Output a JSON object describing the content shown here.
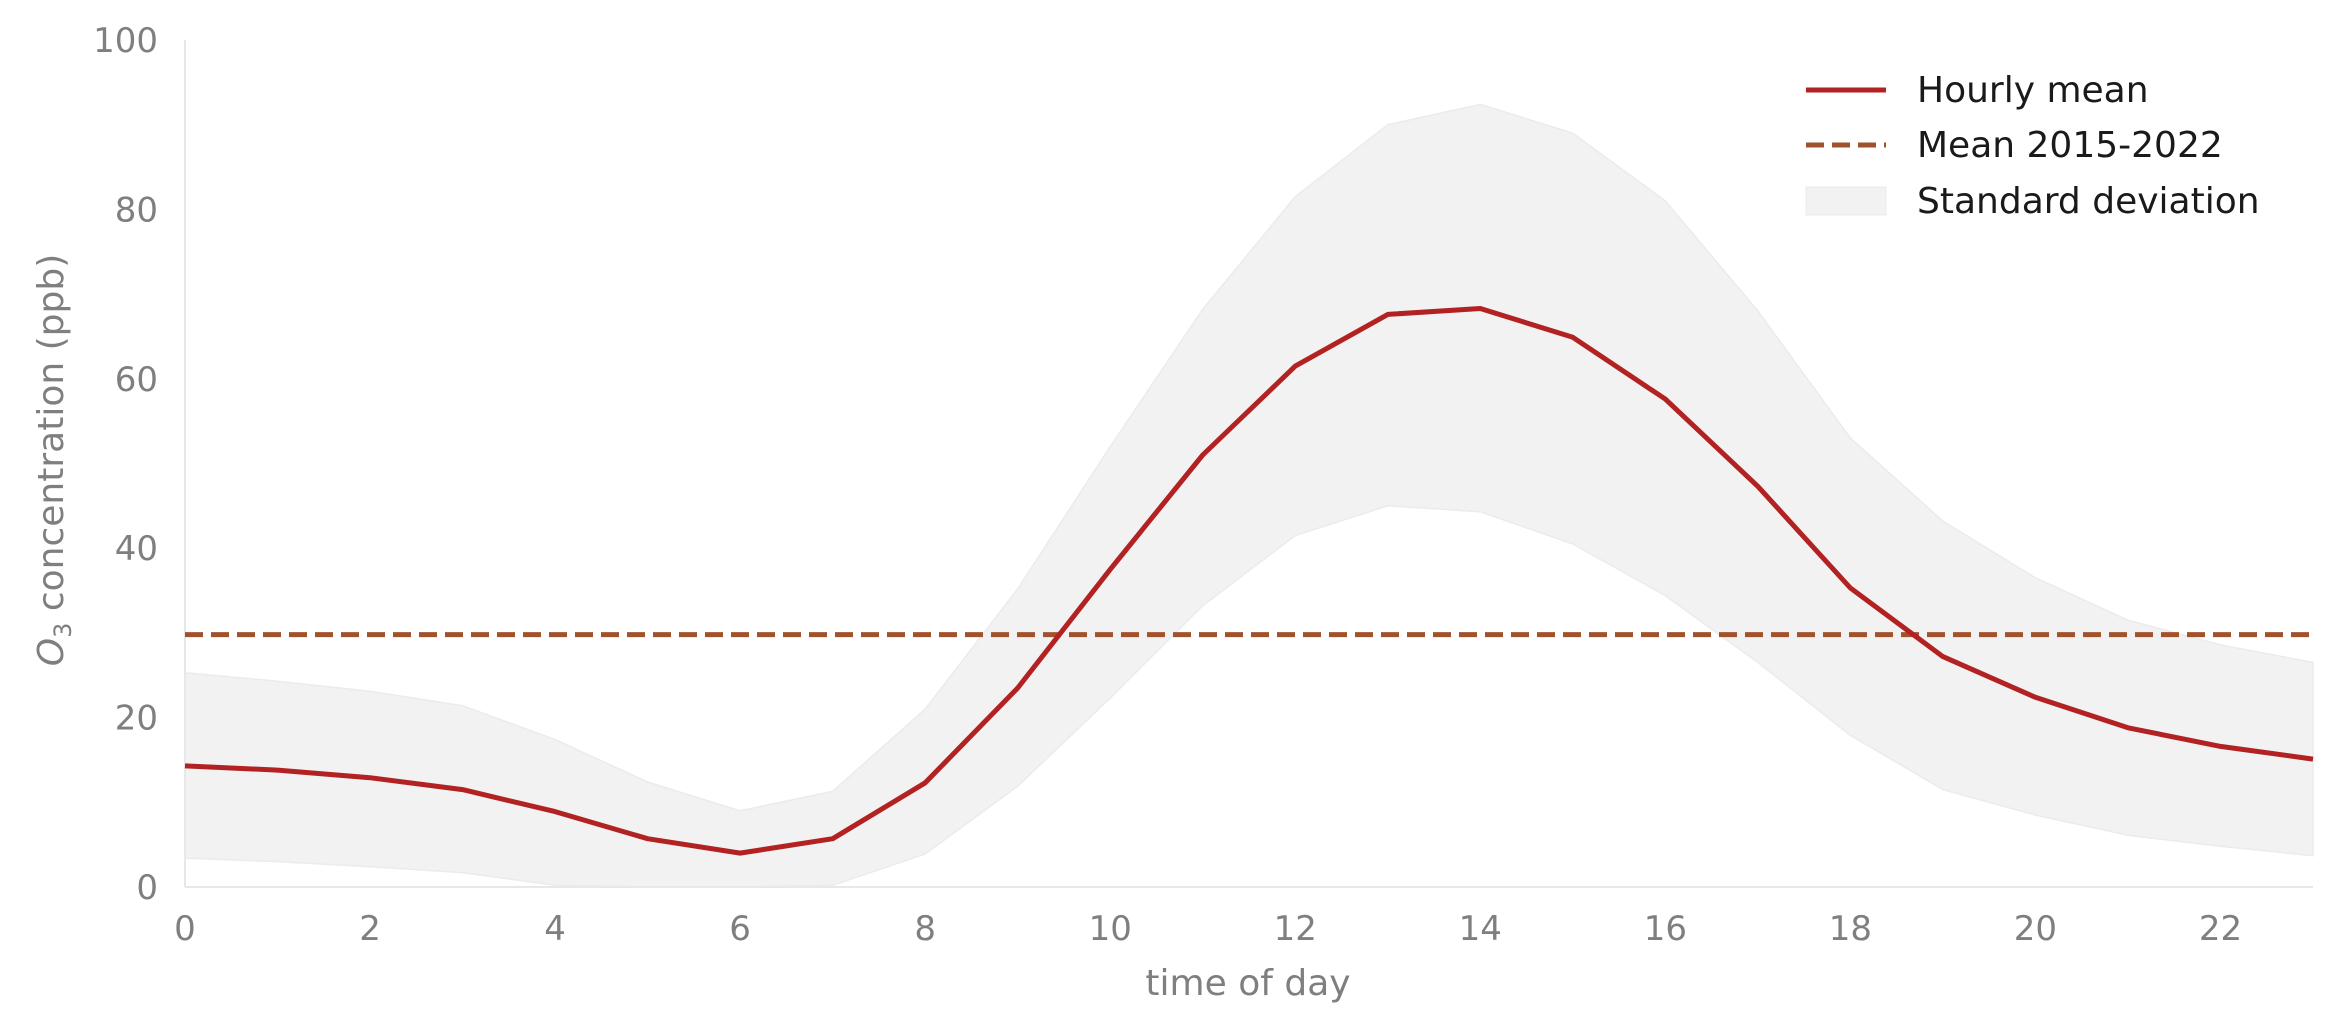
{
  "chart_data": {
    "type": "line",
    "xlabel": "time of day",
    "ylabel_main": "O",
    "ylabel_sub": "3",
    "ylabel_rest": " concentration (ppb)",
    "xlim": [
      0,
      23
    ],
    "ylim": [
      0,
      100
    ],
    "xticks": [
      0,
      2,
      4,
      6,
      8,
      10,
      12,
      14,
      16,
      18,
      20,
      22
    ],
    "yticks": [
      0,
      20,
      40,
      60,
      80,
      100
    ],
    "grid": false,
    "legend_position": "top-right",
    "x": [
      0,
      1,
      2,
      3,
      4,
      5,
      6,
      7,
      8,
      9,
      10,
      11,
      12,
      13,
      14,
      15,
      16,
      17,
      18,
      19,
      20,
      21,
      22,
      23
    ],
    "series": [
      {
        "name": "Hourly mean",
        "style": "solid",
        "color": "#b22222",
        "values": [
          14.3,
          13.8,
          12.9,
          11.5,
          8.9,
          5.7,
          4.0,
          5.7,
          12.3,
          23.5,
          37.5,
          51.0,
          61.5,
          67.6,
          68.3,
          64.9,
          57.6,
          47.3,
          35.3,
          27.2,
          22.4,
          18.8,
          16.6,
          15.1
        ]
      },
      {
        "name": "Mean 2015-2022",
        "style": "dashed",
        "color": "#a0522d",
        "constant": 29.8
      }
    ],
    "band": {
      "name": "Standard deviation",
      "color": "#f2f2f2",
      "upper": [
        25.3,
        24.3,
        23.1,
        21.4,
        17.4,
        12.4,
        9.0,
        11.3,
        21.0,
        35.2,
        52.0,
        68.2,
        81.5,
        90.0,
        92.4,
        89.0,
        81.0,
        68.0,
        53.0,
        43.2,
        36.5,
        31.5,
        28.6,
        26.5
      ],
      "lower": [
        3.4,
        3.0,
        2.4,
        1.7,
        0.2,
        -1.0,
        -1.0,
        0.2,
        3.9,
        11.9,
        22.3,
        33.2,
        41.5,
        45.0,
        44.3,
        40.5,
        34.4,
        26.5,
        17.9,
        11.5,
        8.5,
        6.1,
        4.8,
        3.7
      ]
    }
  }
}
